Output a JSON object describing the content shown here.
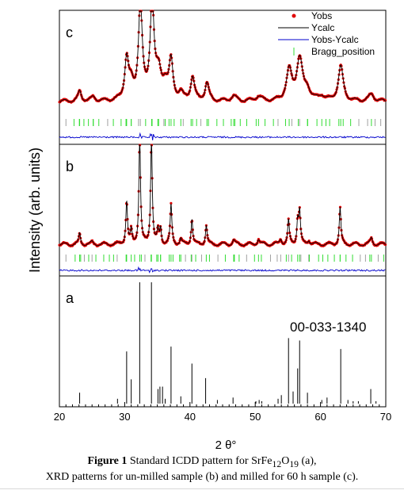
{
  "chart_data": {
    "type": "line",
    "xlabel": "2 θ°",
    "ylabel": "Intensity (arb. units)",
    "xlim": [
      20,
      70
    ],
    "xticks": [
      20,
      30,
      40,
      50,
      60,
      70
    ],
    "legend": {
      "placement": "top-right",
      "entries": [
        {
          "label": "Yobs",
          "marker": "dot",
          "color": "#e00000"
        },
        {
          "label": "Ycalc",
          "marker": "line",
          "color": "#000000"
        },
        {
          "label": "Yobs-Ycalc",
          "marker": "line",
          "color": "#0000cc"
        },
        {
          "label": "Bragg_position",
          "marker": "tick",
          "color": "#33dd33"
        }
      ]
    },
    "panels": [
      {
        "label": "c",
        "series": "xrd",
        "baseline": 0.16,
        "peaks": [
          {
            "x": 23.1,
            "h": 0.1,
            "w": 0.3
          },
          {
            "x": 25.2,
            "h": 0.04,
            "w": 0.4
          },
          {
            "x": 30.3,
            "h": 0.42,
            "w": 0.35
          },
          {
            "x": 31.0,
            "h": 0.14,
            "w": 0.4
          },
          {
            "x": 32.4,
            "h": 0.97,
            "w": 0.35
          },
          {
            "x": 34.2,
            "h": 1.0,
            "w": 0.35
          },
          {
            "x": 35.2,
            "h": 0.25,
            "w": 0.5
          },
          {
            "x": 36.2,
            "h": 0.15,
            "w": 0.5
          },
          {
            "x": 37.1,
            "h": 0.38,
            "w": 0.35
          },
          {
            "x": 38.6,
            "h": 0.07,
            "w": 0.4
          },
          {
            "x": 40.4,
            "h": 0.24,
            "w": 0.35
          },
          {
            "x": 42.6,
            "h": 0.18,
            "w": 0.35
          },
          {
            "x": 46.7,
            "h": 0.05,
            "w": 0.5
          },
          {
            "x": 50.5,
            "h": 0.05,
            "w": 0.5
          },
          {
            "x": 55.2,
            "h": 0.3,
            "w": 0.5
          },
          {
            "x": 56.8,
            "h": 0.42,
            "w": 0.55
          },
          {
            "x": 58.0,
            "h": 0.1,
            "w": 0.5
          },
          {
            "x": 60.2,
            "h": 0.05,
            "w": 0.5
          },
          {
            "x": 63.1,
            "h": 0.35,
            "w": 0.45
          },
          {
            "x": 67.8,
            "h": 0.07,
            "w": 0.5
          }
        ]
      },
      {
        "label": "b",
        "series": "xrd",
        "baseline": 0.08,
        "peaks": [
          {
            "x": 23.1,
            "h": 0.1,
            "w": 0.15
          },
          {
            "x": 25.0,
            "h": 0.02,
            "w": 0.2
          },
          {
            "x": 30.3,
            "h": 0.4,
            "w": 0.15
          },
          {
            "x": 31.0,
            "h": 0.12,
            "w": 0.15
          },
          {
            "x": 32.3,
            "h": 1.0,
            "w": 0.15
          },
          {
            "x": 34.1,
            "h": 1.0,
            "w": 0.15
          },
          {
            "x": 35.1,
            "h": 0.12,
            "w": 0.15
          },
          {
            "x": 35.5,
            "h": 0.14,
            "w": 0.15
          },
          {
            "x": 37.1,
            "h": 0.36,
            "w": 0.15
          },
          {
            "x": 38.6,
            "h": 0.05,
            "w": 0.15
          },
          {
            "x": 40.3,
            "h": 0.24,
            "w": 0.15
          },
          {
            "x": 42.5,
            "h": 0.18,
            "w": 0.15
          },
          {
            "x": 46.7,
            "h": 0.04,
            "w": 0.2
          },
          {
            "x": 50.5,
            "h": 0.05,
            "w": 0.2
          },
          {
            "x": 53.9,
            "h": 0.05,
            "w": 0.2
          },
          {
            "x": 55.1,
            "h": 0.22,
            "w": 0.15
          },
          {
            "x": 56.5,
            "h": 0.22,
            "w": 0.15
          },
          {
            "x": 56.8,
            "h": 0.3,
            "w": 0.15
          },
          {
            "x": 58.2,
            "h": 0.04,
            "w": 0.2
          },
          {
            "x": 63.0,
            "h": 0.34,
            "w": 0.15
          },
          {
            "x": 67.8,
            "h": 0.06,
            "w": 0.2
          }
        ]
      },
      {
        "label": "a",
        "series": "sticks",
        "reference": "00-033-1340",
        "sticks": [
          {
            "x": 23.1,
            "h": 0.09
          },
          {
            "x": 28.9,
            "h": 0.04
          },
          {
            "x": 30.3,
            "h": 0.43
          },
          {
            "x": 31.0,
            "h": 0.2
          },
          {
            "x": 32.3,
            "h": 1.0
          },
          {
            "x": 34.1,
            "h": 1.0
          },
          {
            "x": 35.1,
            "h": 0.12
          },
          {
            "x": 35.4,
            "h": 0.14
          },
          {
            "x": 35.8,
            "h": 0.14
          },
          {
            "x": 36.2,
            "h": 0.04
          },
          {
            "x": 37.1,
            "h": 0.47
          },
          {
            "x": 38.6,
            "h": 0.06
          },
          {
            "x": 40.3,
            "h": 0.33
          },
          {
            "x": 42.4,
            "h": 0.21
          },
          {
            "x": 44.2,
            "h": 0.03
          },
          {
            "x": 46.6,
            "h": 0.05
          },
          {
            "x": 50.1,
            "h": 0.02
          },
          {
            "x": 50.6,
            "h": 0.03
          },
          {
            "x": 51.0,
            "h": 0.02
          },
          {
            "x": 53.5,
            "h": 0.04
          },
          {
            "x": 54.0,
            "h": 0.07
          },
          {
            "x": 55.1,
            "h": 0.54
          },
          {
            "x": 55.8,
            "h": 0.1
          },
          {
            "x": 56.5,
            "h": 0.29
          },
          {
            "x": 56.8,
            "h": 0.52
          },
          {
            "x": 58.0,
            "h": 0.09
          },
          {
            "x": 60.2,
            "h": 0.03
          },
          {
            "x": 61.0,
            "h": 0.05
          },
          {
            "x": 63.1,
            "h": 0.45
          },
          {
            "x": 64.2,
            "h": 0.03
          },
          {
            "x": 65.0,
            "h": 0.02
          },
          {
            "x": 65.8,
            "h": 0.02
          },
          {
            "x": 67.7,
            "h": 0.12
          },
          {
            "x": 68.5,
            "h": 0.02
          }
        ]
      }
    ]
  },
  "caption": {
    "fig_label": "Figure 1",
    "line1_text": " Standard ICDD pattern for SrFe",
    "sub1": "12",
    "mid": "O",
    "sub2": "19",
    "line1_end": " (a),",
    "line2": "XRD patterns for un-milled sample (b) and milled for 60 h sample (c)."
  }
}
